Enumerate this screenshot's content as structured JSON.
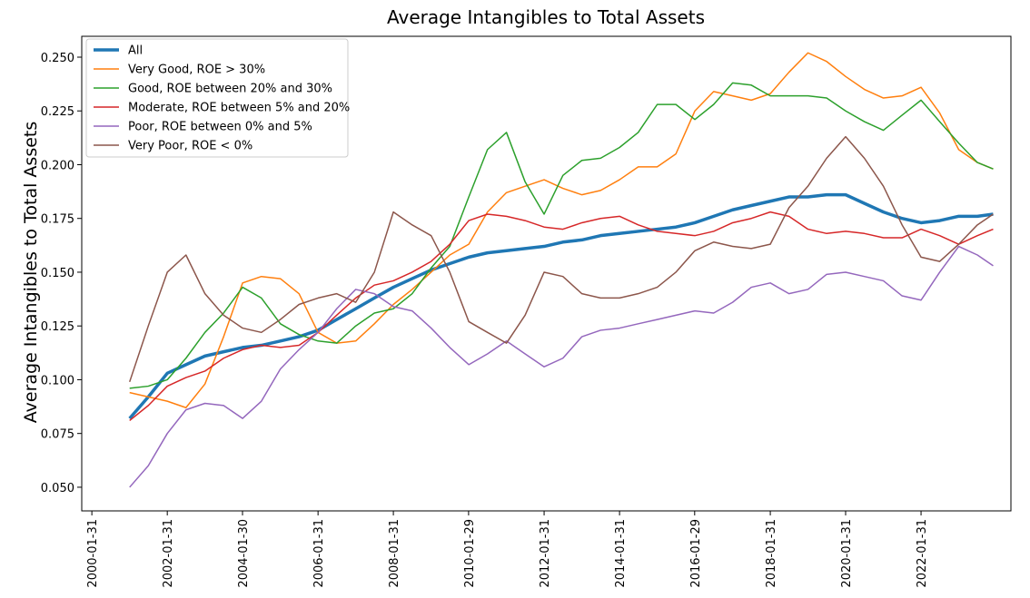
{
  "chart_data": {
    "type": "line",
    "title": "Average Intangibles to Total Assets",
    "y_label": "Average Intangibles to Total Assets",
    "x": [
      "2001-01-31",
      "2001-07-31",
      "2002-01-31",
      "2002-07-31",
      "2003-01-31",
      "2003-07-31",
      "2004-01-31",
      "2004-07-31",
      "2005-01-31",
      "2005-07-31",
      "2006-01-31",
      "2006-07-31",
      "2007-01-31",
      "2007-07-31",
      "2008-01-31",
      "2008-07-31",
      "2009-01-31",
      "2009-07-31",
      "2010-01-31",
      "2010-07-31",
      "2011-01-31",
      "2011-07-31",
      "2012-01-31",
      "2012-07-31",
      "2013-01-31",
      "2013-07-31",
      "2014-01-31",
      "2014-07-31",
      "2015-01-31",
      "2015-07-31",
      "2016-01-31",
      "2016-07-31",
      "2017-01-31",
      "2017-07-31",
      "2018-01-31",
      "2018-07-31",
      "2019-01-31",
      "2019-07-31",
      "2020-01-31",
      "2020-07-31",
      "2021-01-31",
      "2021-07-31",
      "2022-01-31",
      "2022-07-31",
      "2023-01-31",
      "2023-07-31",
      "2023-12-31"
    ],
    "series": [
      {
        "name": "All",
        "color": "#1f77b4",
        "linewidth": 3.5,
        "values": [
          0.082,
          0.092,
          0.103,
          0.107,
          0.111,
          0.113,
          0.115,
          0.116,
          0.118,
          0.12,
          0.123,
          0.128,
          0.133,
          0.138,
          0.143,
          0.147,
          0.151,
          0.154,
          0.157,
          0.159,
          0.16,
          0.161,
          0.162,
          0.164,
          0.165,
          0.167,
          0.168,
          0.169,
          0.17,
          0.171,
          0.173,
          0.176,
          0.179,
          0.181,
          0.183,
          0.185,
          0.185,
          0.186,
          0.186,
          0.182,
          0.178,
          0.175,
          0.173,
          0.174,
          0.176,
          0.176,
          0.177
        ]
      },
      {
        "name": "Very Good, ROE > 30%",
        "color": "#ff7f0e",
        "linewidth": 1.5,
        "values": [
          0.094,
          0.092,
          0.09,
          0.087,
          0.098,
          0.12,
          0.145,
          0.148,
          0.147,
          0.14,
          0.122,
          0.117,
          0.118,
          0.126,
          0.135,
          0.142,
          0.15,
          0.158,
          0.163,
          0.178,
          0.187,
          0.19,
          0.193,
          0.189,
          0.186,
          0.188,
          0.193,
          0.199,
          0.199,
          0.205,
          0.225,
          0.234,
          0.232,
          0.23,
          0.233,
          0.243,
          0.252,
          0.248,
          0.241,
          0.235,
          0.231,
          0.232,
          0.236,
          0.224,
          0.207,
          0.201,
          0.198
        ]
      },
      {
        "name": "Good, ROE between 20% and 30%",
        "color": "#2ca02c",
        "linewidth": 1.5,
        "values": [
          0.096,
          0.097,
          0.1,
          0.11,
          0.122,
          0.131,
          0.143,
          0.138,
          0.126,
          0.121,
          0.118,
          0.117,
          0.125,
          0.131,
          0.133,
          0.14,
          0.152,
          0.162,
          0.185,
          0.207,
          0.215,
          0.192,
          0.177,
          0.195,
          0.202,
          0.203,
          0.208,
          0.215,
          0.228,
          0.228,
          0.221,
          0.228,
          0.238,
          0.237,
          0.232,
          0.232,
          0.232,
          0.231,
          0.225,
          0.22,
          0.216,
          0.223,
          0.23,
          0.22,
          0.21,
          0.201,
          0.198
        ]
      },
      {
        "name": "Moderate, ROE between 5% and 20%",
        "color": "#d62728",
        "linewidth": 1.5,
        "values": [
          0.081,
          0.088,
          0.097,
          0.101,
          0.104,
          0.11,
          0.114,
          0.116,
          0.115,
          0.116,
          0.122,
          0.13,
          0.138,
          0.144,
          0.146,
          0.15,
          0.155,
          0.163,
          0.174,
          0.177,
          0.176,
          0.174,
          0.171,
          0.17,
          0.173,
          0.175,
          0.176,
          0.172,
          0.169,
          0.168,
          0.167,
          0.169,
          0.173,
          0.175,
          0.178,
          0.176,
          0.17,
          0.168,
          0.169,
          0.168,
          0.166,
          0.166,
          0.17,
          0.167,
          0.163,
          0.167,
          0.17
        ]
      },
      {
        "name": "Poor, ROE between 0% and 5%",
        "color": "#9467bd",
        "linewidth": 1.5,
        "values": [
          0.05,
          0.06,
          0.075,
          0.086,
          0.089,
          0.088,
          0.082,
          0.09,
          0.105,
          0.114,
          0.122,
          0.133,
          0.142,
          0.14,
          0.134,
          0.132,
          0.124,
          0.115,
          0.107,
          0.112,
          0.118,
          0.112,
          0.106,
          0.11,
          0.12,
          0.123,
          0.124,
          0.126,
          0.128,
          0.13,
          0.132,
          0.131,
          0.136,
          0.143,
          0.145,
          0.14,
          0.142,
          0.149,
          0.15,
          0.148,
          0.146,
          0.139,
          0.137,
          0.15,
          0.162,
          0.158,
          0.153
        ]
      },
      {
        "name": "Very Poor, ROE < 0%",
        "color": "#8c564b",
        "linewidth": 1.5,
        "values": [
          0.099,
          0.125,
          0.15,
          0.158,
          0.14,
          0.13,
          0.124,
          0.122,
          0.128,
          0.135,
          0.138,
          0.14,
          0.136,
          0.15,
          0.178,
          0.172,
          0.167,
          0.15,
          0.127,
          0.122,
          0.117,
          0.13,
          0.15,
          0.148,
          0.14,
          0.138,
          0.138,
          0.14,
          0.143,
          0.15,
          0.16,
          0.164,
          0.162,
          0.161,
          0.163,
          0.18,
          0.19,
          0.203,
          0.213,
          0.203,
          0.19,
          0.172,
          0.157,
          0.155,
          0.163,
          0.172,
          0.177
        ]
      }
    ],
    "xlim": [
      "1999-10-25",
      "2024-06-20"
    ],
    "xticks": [
      "2000-01-31",
      "2002-01-31",
      "2004-01-30",
      "2006-01-31",
      "2008-01-31",
      "2010-01-29",
      "2012-01-31",
      "2014-01-31",
      "2016-01-29",
      "2018-01-31",
      "2020-01-31",
      "2022-01-31"
    ],
    "ylim": [
      0.039,
      0.2597
    ],
    "yticks": [
      {
        "value": 0.05,
        "label": "0.050"
      },
      {
        "value": 0.075,
        "label": "0.075"
      },
      {
        "value": 0.1,
        "label": "0.100"
      },
      {
        "value": 0.125,
        "label": "0.125"
      },
      {
        "value": 0.15,
        "label": "0.150"
      },
      {
        "value": 0.175,
        "label": "0.175"
      },
      {
        "value": 0.2,
        "label": "0.200"
      },
      {
        "value": 0.225,
        "label": "0.225"
      },
      {
        "value": 0.25,
        "label": "0.250"
      }
    ],
    "legend": "upper left",
    "grid": false
  }
}
